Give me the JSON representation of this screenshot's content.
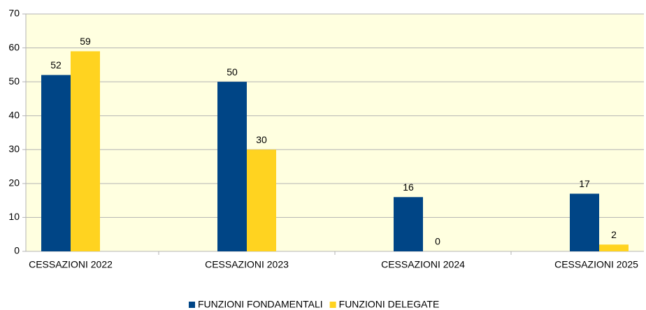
{
  "chart_data": {
    "type": "bar",
    "categories": [
      "CESSAZIONI 2022",
      "CESSAZIONI 2023",
      "CESSAZIONI 2024",
      "CESSAZIONI 2025"
    ],
    "series": [
      {
        "name": "FUNZIONI FONDAMENTALI",
        "color": "#004586",
        "values": [
          52,
          50,
          16,
          17
        ]
      },
      {
        "name": "FUNZIONI DELEGATE",
        "color": "#ffd320",
        "values": [
          59,
          30,
          0,
          2
        ]
      }
    ],
    "ylim": [
      0,
      70
    ],
    "yticks": [
      0,
      10,
      20,
      30,
      40,
      50,
      60,
      70
    ],
    "grid": true,
    "legend": "bottom"
  }
}
